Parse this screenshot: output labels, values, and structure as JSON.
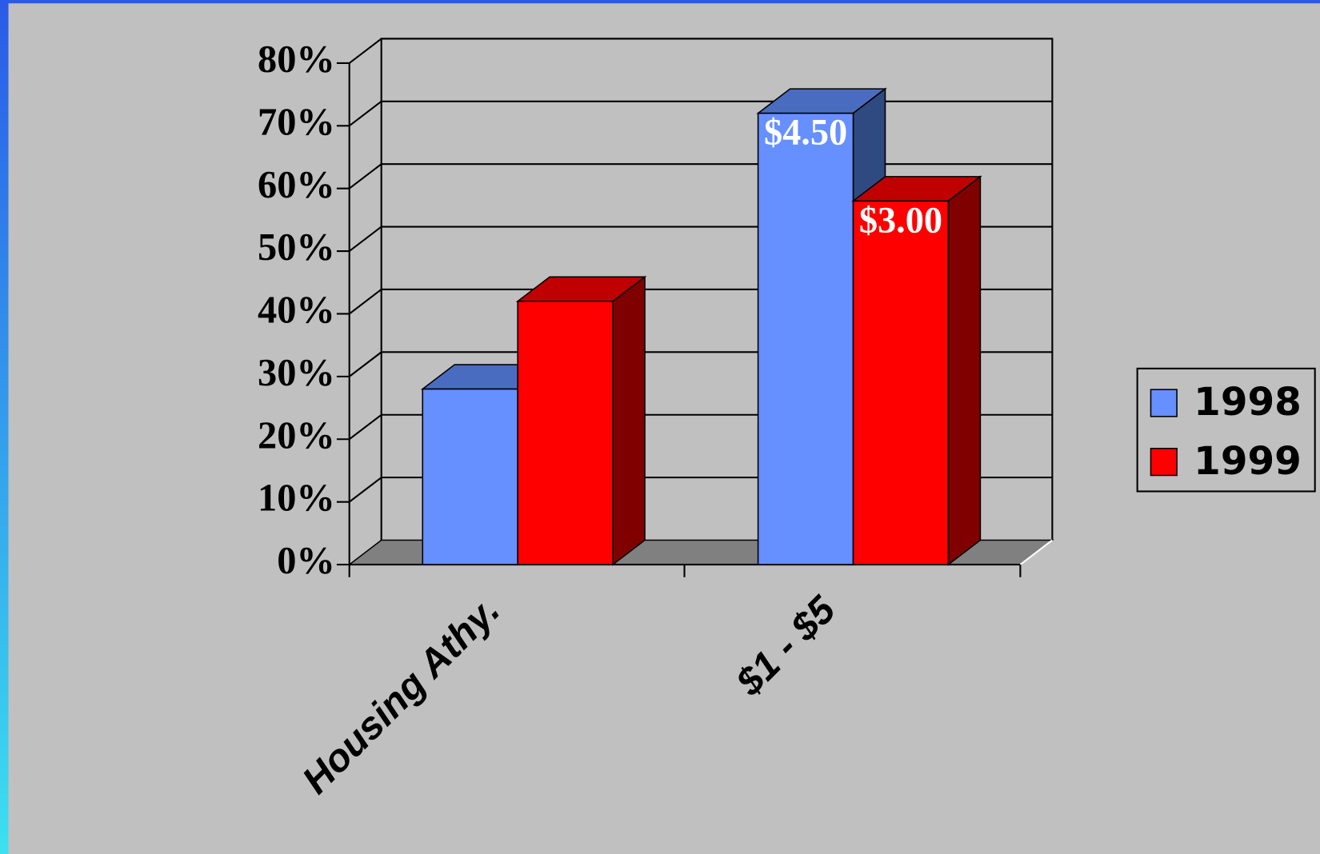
{
  "chart_data": {
    "type": "bar3d",
    "categories": [
      "Housing Athy.",
      "$1 - $5"
    ],
    "series": [
      {
        "name": "1998",
        "color": "#6690ff",
        "top_color": "#4a6cc0",
        "side_color": "#2e4a80",
        "values": [
          28,
          72
        ],
        "point_labels": [
          null,
          "$4.50"
        ]
      },
      {
        "name": "1999",
        "color": "#ff0000",
        "top_color": "#c00000",
        "side_color": "#800000",
        "values": [
          42,
          58
        ],
        "point_labels": [
          null,
          "$3.00"
        ]
      }
    ],
    "ylim": [
      0,
      80
    ],
    "yticks": [
      {
        "value": 0,
        "label": "0%"
      },
      {
        "value": 10,
        "label": "10%"
      },
      {
        "value": 20,
        "label": "20%"
      },
      {
        "value": 30,
        "label": "30%"
      },
      {
        "value": 40,
        "label": "40%"
      },
      {
        "value": 50,
        "label": "50%"
      },
      {
        "value": 60,
        "label": "60%"
      },
      {
        "value": 70,
        "label": "70%"
      },
      {
        "value": 80,
        "label": "80%"
      }
    ],
    "grid": true,
    "legend": "right"
  }
}
